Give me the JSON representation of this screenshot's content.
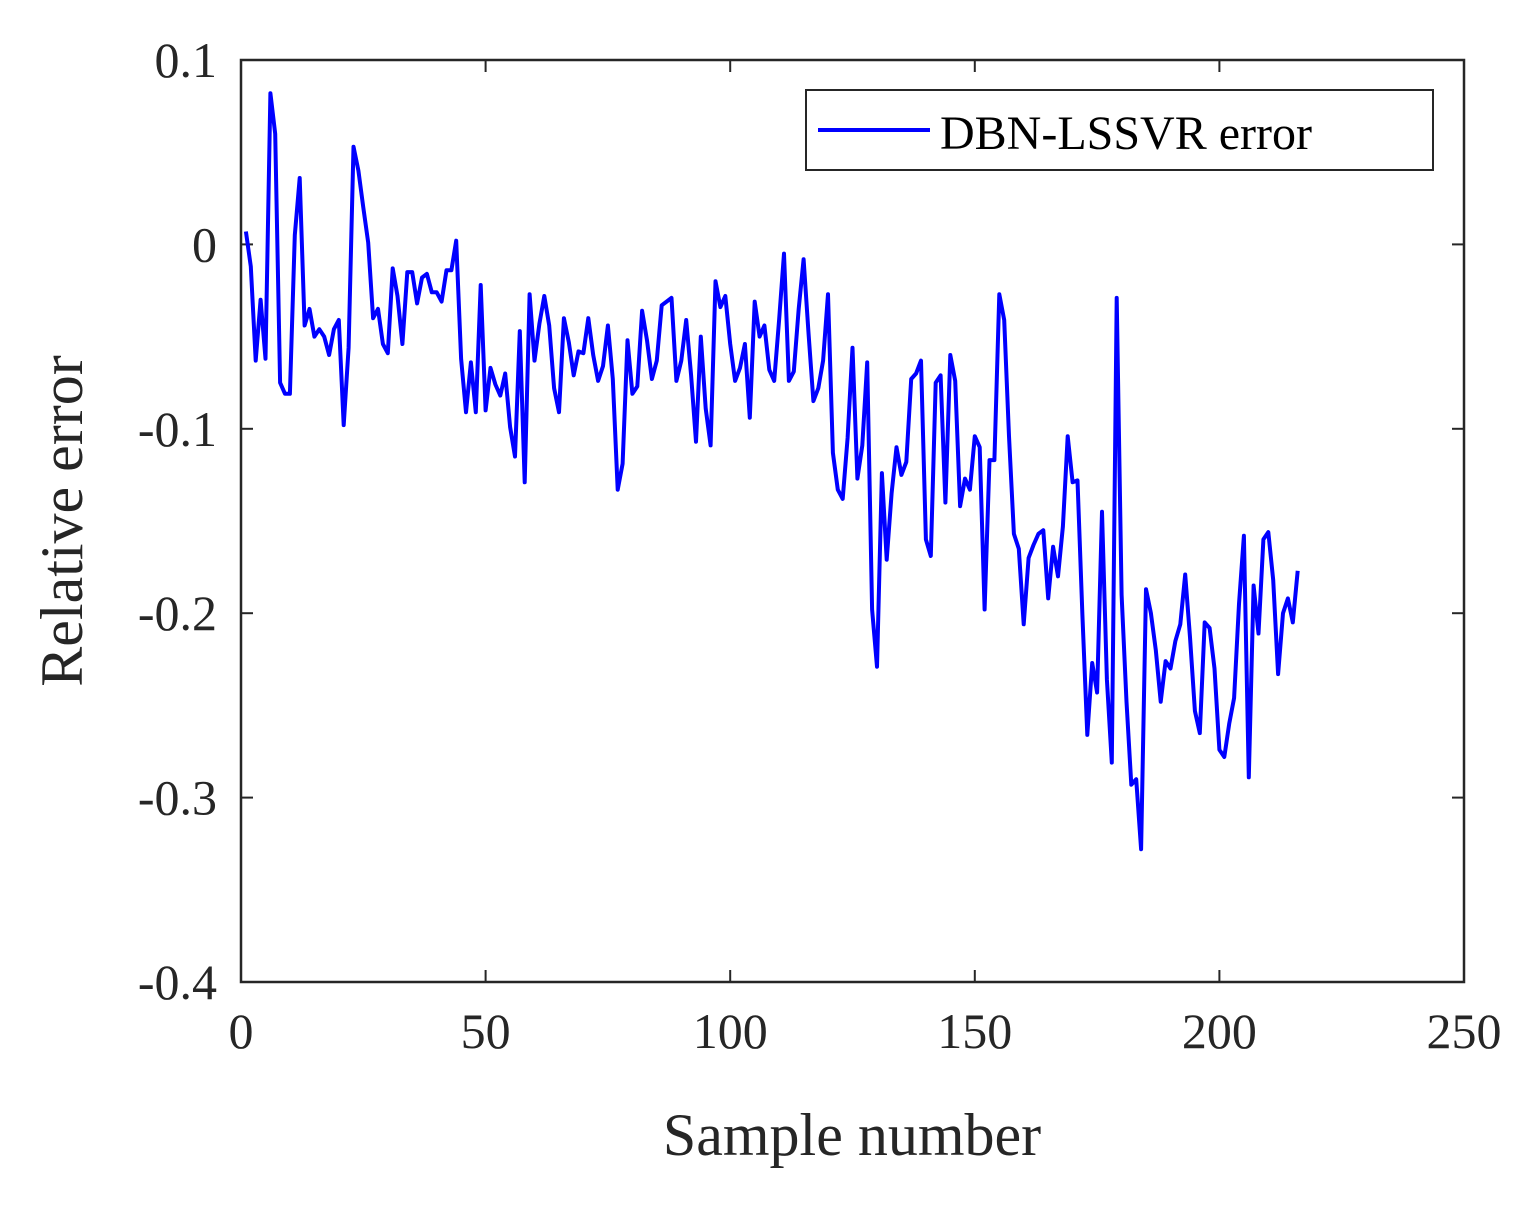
{
  "chart_data": {
    "type": "line",
    "title": "",
    "xlabel": "Sample number",
    "ylabel": "Relative error",
    "xlim": [
      0,
      250
    ],
    "ylim": [
      -0.4,
      0.1
    ],
    "xticks": [
      0,
      50,
      100,
      150,
      200,
      250
    ],
    "yticks": [
      0.1,
      0,
      -0.1,
      -0.2,
      -0.3,
      -0.4
    ],
    "xtick_labels": [
      "0",
      "50",
      "100",
      "150",
      "200",
      "250"
    ],
    "ytick_labels": [
      "0.1",
      "0",
      "-0.1",
      "-0.2",
      "-0.3",
      "-0.4"
    ],
    "grid": false,
    "legend_position": "top-right",
    "series": [
      {
        "name": "DBN-LSSVR error",
        "color": "#0000ff",
        "x": [
          1,
          2,
          3,
          4,
          5,
          6,
          7,
          8,
          9,
          10,
          11,
          12,
          13,
          14,
          15,
          16,
          17,
          18,
          19,
          20,
          21,
          22,
          23,
          24,
          25,
          26,
          27,
          28,
          29,
          30,
          31,
          32,
          33,
          34,
          35,
          36,
          37,
          38,
          39,
          40,
          41,
          42,
          43,
          44,
          45,
          46,
          47,
          48,
          49,
          50,
          51,
          52,
          53,
          54,
          55,
          56,
          57,
          58,
          59,
          60,
          61,
          62,
          63,
          64,
          65,
          66,
          67,
          68,
          69,
          70,
          71,
          72,
          73,
          74,
          75,
          76,
          77,
          78,
          79,
          80,
          81,
          82,
          83,
          84,
          85,
          86,
          87,
          88,
          89,
          90,
          91,
          92,
          93,
          94,
          95,
          96,
          97,
          98,
          99,
          100,
          101,
          102,
          103,
          104,
          105,
          106,
          107,
          108,
          109,
          110,
          111,
          112,
          113,
          114,
          115,
          116,
          117,
          118,
          119,
          120,
          121,
          122,
          123,
          124,
          125,
          126,
          127,
          128,
          129,
          130,
          131,
          132,
          133,
          134,
          135,
          136,
          137,
          138,
          139,
          140,
          141,
          142,
          143,
          144,
          145,
          146,
          147,
          148,
          149,
          150,
          151,
          152,
          153,
          154,
          155,
          156,
          157,
          158,
          159,
          160,
          161,
          162,
          163,
          164,
          165,
          166,
          167,
          168,
          169,
          170,
          171,
          172,
          173,
          174,
          175,
          176,
          177,
          178,
          179,
          180,
          181,
          182,
          183,
          184,
          185,
          186,
          187,
          188,
          189,
          190,
          191,
          192,
          193,
          194,
          195,
          196,
          197,
          198,
          199,
          200,
          201,
          202,
          203,
          204,
          205,
          206,
          207,
          208,
          209,
          210,
          211,
          212,
          213,
          214,
          215,
          216
        ],
        "values": [
          0.007,
          -0.012,
          -0.063,
          -0.03,
          -0.062,
          0.082,
          0.06,
          -0.075,
          -0.081,
          -0.081,
          0.005,
          0.036,
          -0.044,
          -0.035,
          -0.05,
          -0.046,
          -0.05,
          -0.06,
          -0.046,
          -0.041,
          -0.098,
          -0.056,
          0.053,
          0.04,
          0.02,
          0.001,
          -0.04,
          -0.035,
          -0.054,
          -0.059,
          -0.013,
          -0.028,
          -0.054,
          -0.015,
          -0.015,
          -0.032,
          -0.018,
          -0.016,
          -0.026,
          -0.026,
          -0.031,
          -0.014,
          -0.014,
          0.002,
          -0.062,
          -0.091,
          -0.064,
          -0.091,
          -0.022,
          -0.09,
          -0.067,
          -0.076,
          -0.082,
          -0.07,
          -0.099,
          -0.115,
          -0.047,
          -0.129,
          -0.027,
          -0.063,
          -0.043,
          -0.028,
          -0.044,
          -0.078,
          -0.091,
          -0.04,
          -0.053,
          -0.071,
          -0.058,
          -0.059,
          -0.04,
          -0.06,
          -0.074,
          -0.066,
          -0.044,
          -0.073,
          -0.133,
          -0.119,
          -0.052,
          -0.081,
          -0.077,
          -0.036,
          -0.052,
          -0.073,
          -0.063,
          -0.033,
          -0.031,
          -0.029,
          -0.074,
          -0.063,
          -0.041,
          -0.071,
          -0.107,
          -0.05,
          -0.089,
          -0.109,
          -0.02,
          -0.034,
          -0.028,
          -0.054,
          -0.074,
          -0.067,
          -0.054,
          -0.094,
          -0.031,
          -0.05,
          -0.044,
          -0.068,
          -0.074,
          -0.041,
          -0.005,
          -0.074,
          -0.069,
          -0.035,
          -0.008,
          -0.048,
          -0.085,
          -0.078,
          -0.063,
          -0.027,
          -0.113,
          -0.133,
          -0.138,
          -0.105,
          -0.056,
          -0.127,
          -0.109,
          -0.064,
          -0.198,
          -0.229,
          -0.124,
          -0.171,
          -0.135,
          -0.11,
          -0.125,
          -0.118,
          -0.073,
          -0.07,
          -0.063,
          -0.16,
          -0.169,
          -0.075,
          -0.071,
          -0.14,
          -0.06,
          -0.074,
          -0.142,
          -0.127,
          -0.133,
          -0.104,
          -0.11,
          -0.198,
          -0.117,
          -0.117,
          -0.027,
          -0.041,
          -0.104,
          -0.157,
          -0.165,
          -0.206,
          -0.17,
          -0.163,
          -0.157,
          -0.155,
          -0.192,
          -0.164,
          -0.18,
          -0.153,
          -0.104,
          -0.129,
          -0.128,
          -0.201,
          -0.266,
          -0.227,
          -0.243,
          -0.145,
          -0.236,
          -0.281,
          -0.029,
          -0.19,
          -0.248,
          -0.293,
          -0.29,
          -0.328,
          -0.187,
          -0.2,
          -0.22,
          -0.248,
          -0.226,
          -0.23,
          -0.215,
          -0.206,
          -0.179,
          -0.213,
          -0.253,
          -0.265,
          -0.205,
          -0.208,
          -0.23,
          -0.274,
          -0.278,
          -0.26,
          -0.246,
          -0.195,
          -0.158,
          -0.289,
          -0.185,
          -0.211,
          -0.16,
          -0.156,
          -0.182,
          -0.233,
          -0.2,
          -0.192,
          -0.205,
          -0.177
        ]
      }
    ]
  }
}
